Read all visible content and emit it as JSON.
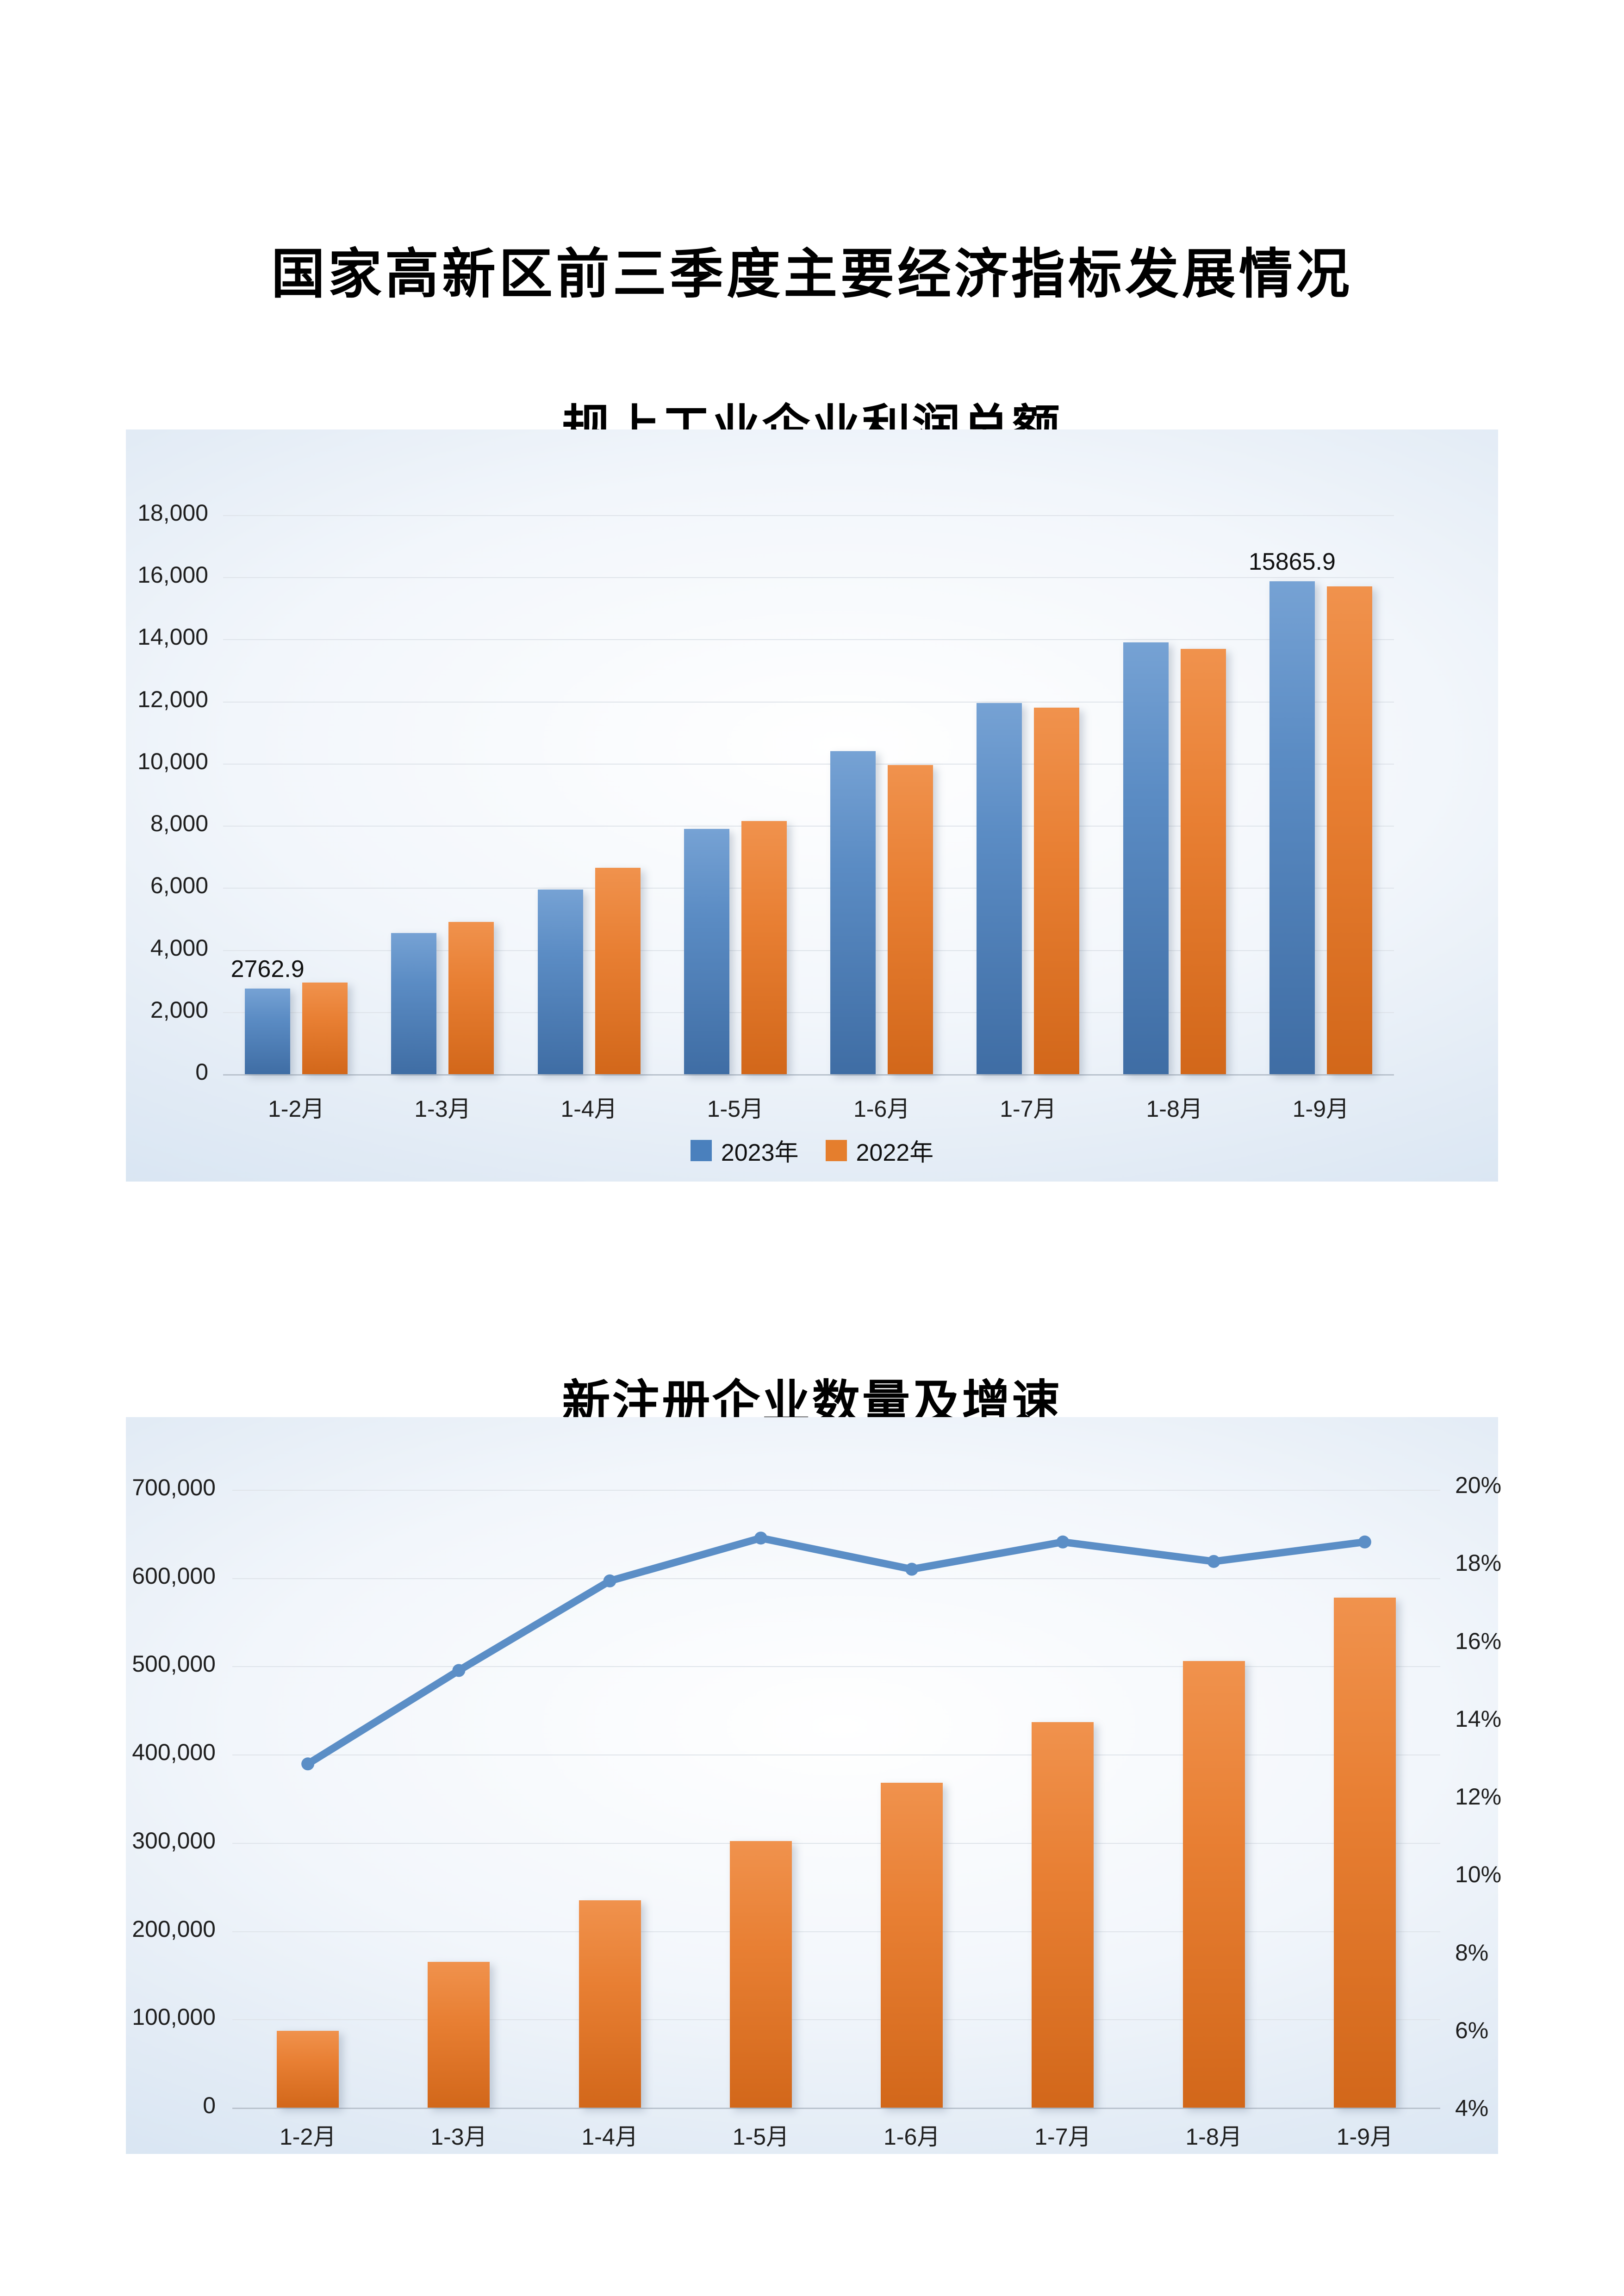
{
  "page": {
    "title": "国家高新区前三季度主要经济指标发展情况"
  },
  "colors": {
    "bar_blue_top": "#76a2d4",
    "bar_blue_bottom": "#3f6da4",
    "bar_orange_top": "#f0924d",
    "bar_orange_bottom": "#d2671a",
    "line_blue": "#5b8ec6",
    "panel_edge_blue": "#cadcee",
    "grid_line": "#dfe4ea",
    "axis_line": "#b9c2cd",
    "text_dark": "#1c1c1c"
  },
  "chart_data": [
    {
      "type": "bar",
      "title": "规上工业企业利润总额",
      "categories": [
        "1-2月",
        "1-3月",
        "1-4月",
        "1-5月",
        "1-6月",
        "1-7月",
        "1-8月",
        "1-9月"
      ],
      "series": [
        {
          "name": "2023年",
          "color_key": "blue",
          "values": [
            2762.9,
            4550,
            5950,
            7900,
            10400,
            11950,
            13900,
            15865.9
          ]
        },
        {
          "name": "2022年",
          "color_key": "orange",
          "values": [
            2950,
            4900,
            6650,
            8150,
            9950,
            11800,
            13700,
            15700
          ]
        }
      ],
      "ylim": [
        0,
        18000
      ],
      "ytick_step": 2000,
      "y_tick_labels": [
        "0",
        "2,000",
        "4,000",
        "6,000",
        "8,000",
        "10,000",
        "12,000",
        "14,000",
        "16,000",
        "18,000"
      ],
      "grid": true,
      "legend_position": "bottom",
      "data_labels": [
        {
          "series": 0,
          "index": 0,
          "text": "2762.9"
        },
        {
          "series": 0,
          "index": 7,
          "text": "15865.9"
        }
      ]
    },
    {
      "type": "bar+line",
      "title": "新注册企业数量及增速",
      "categories": [
        "1-2月",
        "1-3月",
        "1-4月",
        "1-5月",
        "1-6月",
        "1-7月",
        "1-8月",
        "1-9月"
      ],
      "bar_series": {
        "axis": "left",
        "color_key": "orange",
        "values": [
          87000,
          165000,
          235000,
          302000,
          368000,
          437000,
          506000,
          578000
        ]
      },
      "line_series": {
        "axis": "right",
        "color_key": "line_blue",
        "values_percent": [
          12.9,
          15.3,
          17.6,
          18.7,
          17.9,
          18.6,
          18.1,
          18.6
        ]
      },
      "ylim_left": [
        0,
        700000
      ],
      "ytick_left": 100000,
      "y_tick_labels_left": [
        "0",
        "100,000",
        "200,000",
        "300,000",
        "400,000",
        "500,000",
        "600,000",
        "700,000"
      ],
      "ylim_right": [
        4,
        20
      ],
      "ytick_right": 2,
      "y_tick_labels_right": [
        "4%",
        "6%",
        "8%",
        "10%",
        "12%",
        "14%",
        "16%",
        "18%",
        "20%"
      ],
      "grid": true,
      "legend_position": "none"
    }
  ]
}
